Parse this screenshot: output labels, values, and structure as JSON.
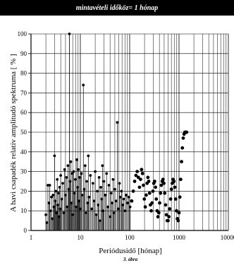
{
  "chart_data": {
    "type": "scatter",
    "title": "mintavételi időköz= 1 hónap",
    "xlabel": "Periódusidő [hónap]",
    "ylabel": "A havi csapadék relatív amplitudó spektruma [ % ]",
    "caption": "3. ábra",
    "x_scale": "log",
    "xlim": [
      1,
      10000
    ],
    "ylim": [
      0,
      100
    ],
    "x_ticks": [
      "1",
      "10",
      "100",
      "1000",
      "10000"
    ],
    "y_ticks": [
      "0",
      "10",
      "20",
      "30",
      "40",
      "50",
      "60",
      "70",
      "80",
      "90",
      "100"
    ],
    "grid": true,
    "series": [
      {
        "values": [
          [
            2.0,
            8
          ],
          [
            2.1,
            4
          ],
          [
            2.2,
            23
          ],
          [
            2.3,
            14
          ],
          [
            2.4,
            23
          ],
          [
            2.5,
            10
          ],
          [
            2.6,
            17
          ],
          [
            2.7,
            6
          ],
          [
            2.8,
            18
          ],
          [
            2.9,
            12
          ],
          [
            3.0,
            38
          ],
          [
            3.1,
            15
          ],
          [
            3.2,
            20
          ],
          [
            3.3,
            9
          ],
          [
            3.4,
            26
          ],
          [
            3.5,
            13
          ],
          [
            3.6,
            19
          ],
          [
            3.7,
            7
          ],
          [
            3.8,
            22
          ],
          [
            3.9,
            11
          ],
          [
            4.0,
            28
          ],
          [
            4.2,
            16
          ],
          [
            4.4,
            24
          ],
          [
            4.6,
            9
          ],
          [
            4.8,
            31
          ],
          [
            5.0,
            18
          ],
          [
            5.2,
            27
          ],
          [
            5.4,
            12
          ],
          [
            5.6,
            33
          ],
          [
            5.8,
            21
          ],
          [
            6.0,
            100
          ],
          [
            6.2,
            25
          ],
          [
            6.4,
            35
          ],
          [
            6.6,
            14
          ],
          [
            6.8,
            29
          ],
          [
            7.0,
            8
          ],
          [
            7.3,
            30
          ],
          [
            7.6,
            19
          ],
          [
            7.9,
            26
          ],
          [
            8.2,
            12
          ],
          [
            8.5,
            36
          ],
          [
            8.8,
            22
          ],
          [
            9.1,
            31
          ],
          [
            9.4,
            15
          ],
          [
            9.7,
            27
          ],
          [
            10.0,
            11
          ],
          [
            10.5,
            29
          ],
          [
            11.0,
            18
          ],
          [
            11.5,
            74
          ],
          [
            12.0,
            21
          ],
          [
            12.5,
            33
          ],
          [
            13.0,
            9
          ],
          [
            13.5,
            25
          ],
          [
            14.0,
            14
          ],
          [
            14.5,
            38
          ],
          [
            15.0,
            17
          ],
          [
            16.0,
            28
          ],
          [
            17.0,
            11
          ],
          [
            18.0,
            24
          ],
          [
            19.0,
            15
          ],
          [
            20.0,
            30
          ],
          [
            21.0,
            8
          ],
          [
            22.0,
            20
          ],
          [
            23.0,
            13
          ],
          [
            24.0,
            27
          ],
          [
            25.0,
            5
          ],
          [
            26.0,
            22
          ],
          [
            27.0,
            16
          ],
          [
            28.0,
            33
          ],
          [
            29.0,
            10
          ],
          [
            30.0,
            25
          ],
          [
            32.0,
            18
          ],
          [
            34.0,
            29
          ],
          [
            36.0,
            12
          ],
          [
            38.0,
            23
          ],
          [
            40.0,
            7
          ],
          [
            42.0,
            19
          ],
          [
            44.0,
            14
          ],
          [
            46.0,
            26
          ],
          [
            48.0,
            9
          ],
          [
            50.0,
            21
          ],
          [
            53.0,
            15
          ],
          [
            56.0,
            55
          ],
          [
            59.0,
            11
          ],
          [
            62.0,
            24
          ],
          [
            65.0,
            17
          ],
          [
            68.0,
            20
          ],
          [
            72.0,
            13
          ],
          [
            76.0,
            16
          ],
          [
            80.0,
            10
          ],
          [
            85.0,
            18
          ],
          [
            90.0,
            14
          ],
          [
            96.0,
            17
          ],
          [
            102.0,
            12
          ],
          [
            110.0,
            15
          ],
          [
            118.0,
            20
          ],
          [
            126.0,
            25
          ],
          [
            134.0,
            28
          ],
          [
            142.0,
            30
          ],
          [
            150.0,
            27
          ],
          [
            158.0,
            22
          ],
          [
            166.0,
            26
          ],
          [
            174.0,
            31
          ],
          [
            182.0,
            29
          ],
          [
            190.0,
            23
          ],
          [
            198.0,
            16
          ],
          [
            207.0,
            12
          ],
          [
            216.0,
            18
          ],
          [
            225.0,
            24
          ],
          [
            234.0,
            27
          ],
          [
            243.0,
            25
          ],
          [
            253.0,
            19
          ],
          [
            263.0,
            13
          ],
          [
            273.0,
            10
          ],
          [
            284.0,
            14
          ],
          [
            296.0,
            20
          ],
          [
            308.0,
            24
          ],
          [
            320.0,
            25
          ],
          [
            333.0,
            22
          ],
          [
            346.0,
            16
          ],
          [
            360.0,
            10
          ],
          [
            374.0,
            7
          ],
          [
            389.0,
            9
          ],
          [
            405.0,
            14
          ],
          [
            421.0,
            19
          ],
          [
            438.0,
            23
          ],
          [
            456.0,
            25
          ],
          [
            474.0,
            26
          ],
          [
            493.0,
            24
          ],
          [
            513.0,
            19
          ],
          [
            534.0,
            13
          ],
          [
            555.0,
            8
          ],
          [
            577.0,
            5
          ],
          [
            600.0,
            5
          ],
          [
            624.0,
            7
          ],
          [
            649.0,
            11
          ],
          [
            675.0,
            16
          ],
          [
            702.0,
            21
          ],
          [
            730.0,
            24
          ],
          [
            759.0,
            26
          ],
          [
            789.0,
            25
          ],
          [
            821.0,
            22
          ],
          [
            854.0,
            16
          ],
          [
            888.0,
            10
          ],
          [
            924.0,
            6
          ],
          [
            961.0,
            5
          ],
          [
            999.0,
            9
          ],
          [
            1039.0,
            17
          ],
          [
            1081.0,
            26
          ],
          [
            1124.0,
            35
          ],
          [
            1169.0,
            42
          ],
          [
            1216.0,
            47
          ],
          [
            1265.0,
            49
          ],
          [
            1315.0,
            50
          ],
          [
            1368.0,
            50
          ],
          [
            1423.0,
            50
          ]
        ]
      }
    ]
  }
}
